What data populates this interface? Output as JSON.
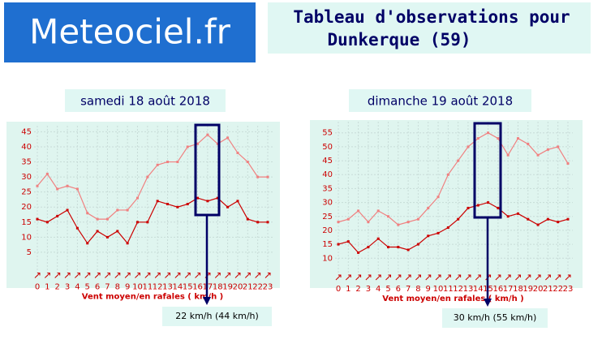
{
  "header": {
    "logo": "Meteociel.fr",
    "title_line1": "Tableau d'observations pour",
    "title_line2": "Dunkerque (59)"
  },
  "chart_data": [
    {
      "type": "line",
      "title": "samedi 18 août 2018",
      "xlabel": "Vent moyen/en rafales ( km/h )",
      "x": [
        0,
        1,
        2,
        3,
        4,
        5,
        6,
        7,
        8,
        9,
        10,
        11,
        12,
        13,
        14,
        15,
        16,
        17,
        18,
        19,
        20,
        21,
        22,
        23
      ],
      "series": [
        {
          "color": "#f08080",
          "values": [
            27,
            31,
            26,
            27,
            26,
            18,
            16,
            16,
            19,
            19,
            23,
            30,
            34,
            35,
            35,
            40,
            41,
            44,
            41,
            43,
            38,
            35,
            30,
            30
          ]
        },
        {
          "color": "#cc0000",
          "values": [
            16,
            15,
            17,
            19,
            13,
            8,
            12,
            10,
            12,
            8,
            15,
            15,
            22,
            21,
            20,
            21,
            23,
            22,
            23,
            20,
            22,
            16,
            15,
            15
          ]
        }
      ],
      "ylim": [
        0,
        47
      ],
      "yticks": [
        5,
        10,
        15,
        20,
        25,
        30,
        35,
        40,
        45
      ],
      "grid": true,
      "annotation": "22 km/h (44 km/h)"
    },
    {
      "type": "line",
      "title": "dimanche 19 août 2018",
      "xlabel": "Vent moyen/en rafales ( km/h )",
      "x": [
        0,
        1,
        2,
        3,
        4,
        5,
        6,
        7,
        8,
        9,
        10,
        11,
        12,
        13,
        14,
        15,
        16,
        17,
        18,
        19,
        20,
        21,
        22,
        23
      ],
      "series": [
        {
          "color": "#f08080",
          "values": [
            23,
            24,
            27,
            23,
            27,
            25,
            22,
            23,
            24,
            28,
            32,
            40,
            45,
            50,
            53,
            55,
            53,
            47,
            53,
            51,
            47,
            49,
            50,
            44
          ]
        },
        {
          "color": "#cc0000",
          "values": [
            15,
            16,
            12,
            14,
            17,
            14,
            14,
            13,
            15,
            18,
            19,
            21,
            24,
            28,
            29,
            30,
            28,
            25,
            26,
            24,
            22,
            24,
            23,
            24
          ]
        }
      ],
      "ylim": [
        6,
        59
      ],
      "yticks": [
        10,
        15,
        20,
        25,
        30,
        35,
        40,
        45,
        50,
        55
      ],
      "grid": true,
      "annotation": "30 km/h (55 km/h)"
    }
  ]
}
